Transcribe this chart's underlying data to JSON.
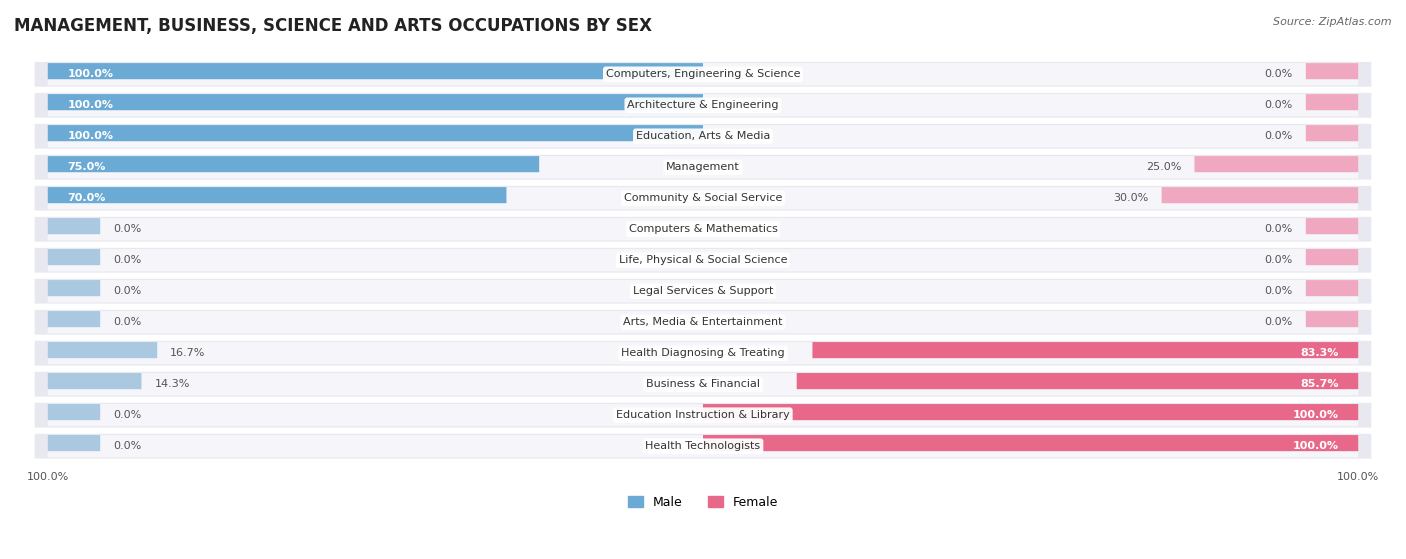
{
  "title": "MANAGEMENT, BUSINESS, SCIENCE AND ARTS OCCUPATIONS BY SEX",
  "source": "Source: ZipAtlas.com",
  "categories": [
    "Computers, Engineering & Science",
    "Architecture & Engineering",
    "Education, Arts & Media",
    "Management",
    "Community & Social Service",
    "Computers & Mathematics",
    "Life, Physical & Social Science",
    "Legal Services & Support",
    "Arts, Media & Entertainment",
    "Health Diagnosing & Treating",
    "Business & Financial",
    "Education Instruction & Library",
    "Health Technologists"
  ],
  "male": [
    100.0,
    100.0,
    100.0,
    75.0,
    70.0,
    0.0,
    0.0,
    0.0,
    0.0,
    16.7,
    14.3,
    0.0,
    0.0
  ],
  "female": [
    0.0,
    0.0,
    0.0,
    25.0,
    30.0,
    0.0,
    0.0,
    0.0,
    0.0,
    83.3,
    85.7,
    100.0,
    100.0
  ],
  "male_color_strong": "#6aaad4",
  "male_color_light": "#aac8e0",
  "female_color_strong": "#e8688a",
  "female_color_light": "#f0a8c0",
  "row_bg_color": "#e8e8f0",
  "row_fill_color": "#f5f5fa",
  "label_bg_color": "#ffffff",
  "title_fontsize": 12,
  "source_fontsize": 8,
  "bar_label_fontsize": 8,
  "cat_label_fontsize": 8,
  "legend_fontsize": 9,
  "xlim_left": -105,
  "xlim_right": 105
}
